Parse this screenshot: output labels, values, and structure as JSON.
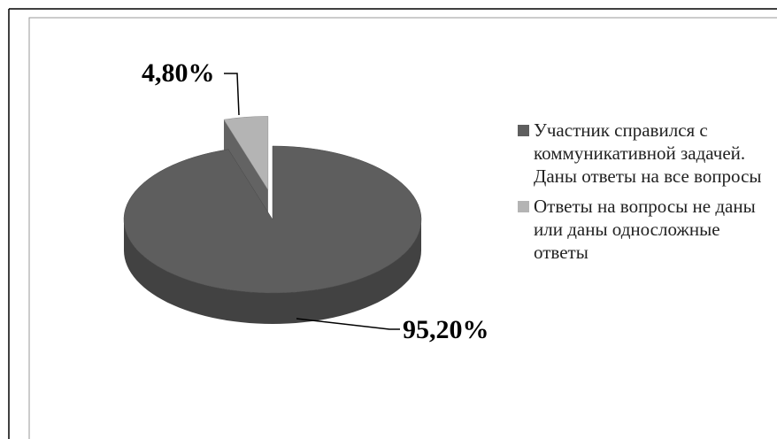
{
  "chart_data": {
    "type": "pie",
    "categories": [
      "Участник справился с коммуникативной задачей. Даны ответы на все вопросы",
      "Ответы на вопросы не даны или даны односложные ответы"
    ],
    "values": [
      95.2,
      4.8
    ],
    "value_labels": [
      "95,20%",
      "4,80%"
    ],
    "colors": [
      "#5e5e5e",
      "#b4b4b4"
    ],
    "legend": "right"
  }
}
